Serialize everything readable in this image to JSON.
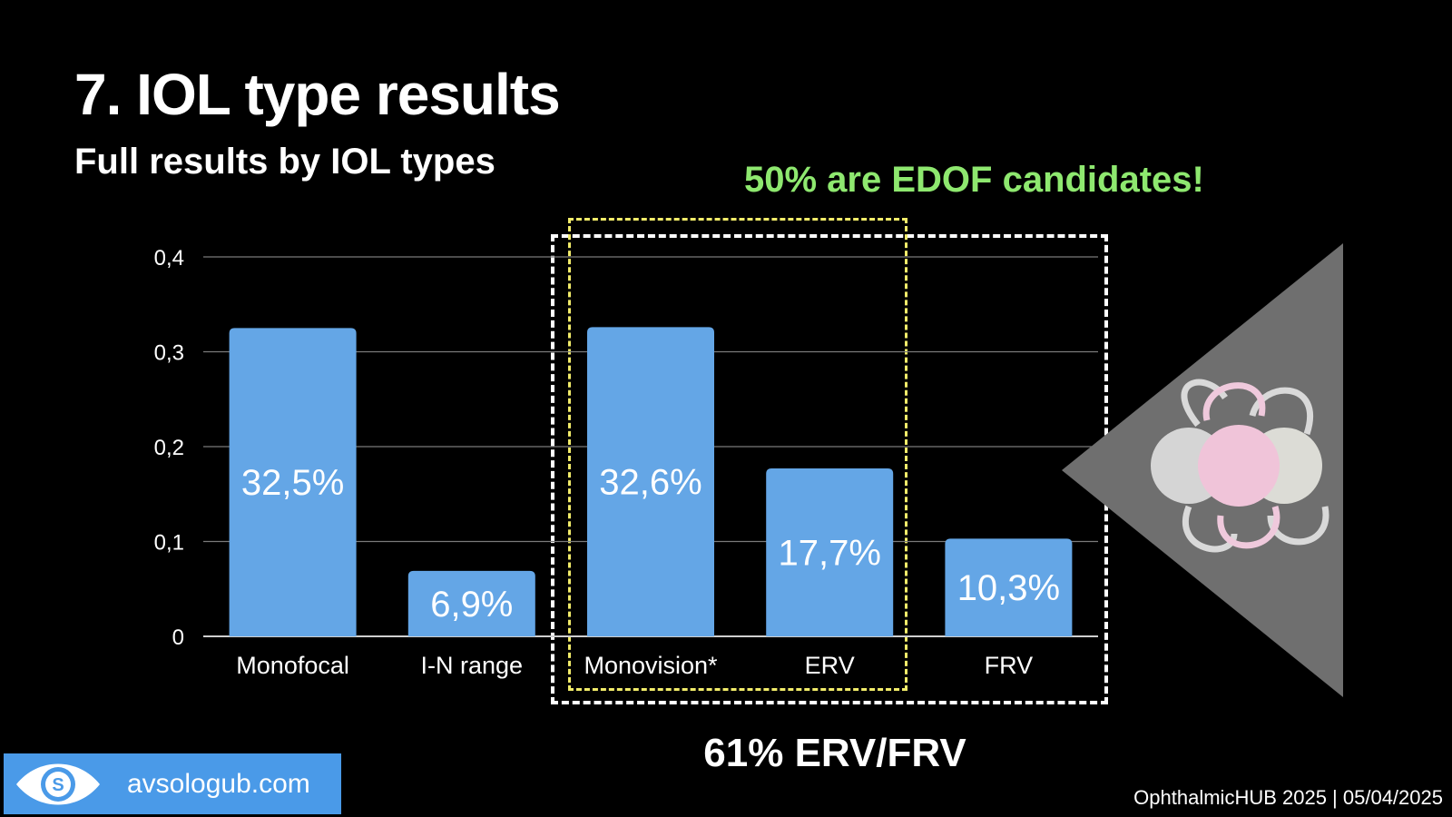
{
  "slide": {
    "title": "7. IOL type results",
    "subtitle": "Full results by IOL types",
    "callout_top": "50% are EDOF candidates!",
    "callout_bottom": "61% ERV/FRV",
    "brand": "avsologub.com",
    "footer": "OphthalmicHUB 2025 | 05/04/2025"
  },
  "colors": {
    "bar": "#64a6e6",
    "accent_green": "#8ee86f",
    "box_yellow": "#f2ec6a",
    "brand_bg": "#4a9ae8"
  },
  "chart_data": {
    "type": "bar",
    "title": "",
    "xlabel": "",
    "ylabel": "",
    "categories": [
      "Monofocal",
      "I-N range",
      "Monovision*",
      "ERV",
      "FRV"
    ],
    "values": [
      0.325,
      0.069,
      0.326,
      0.177,
      0.103
    ],
    "data_labels": [
      "32,5%",
      "6,9%",
      "32,6%",
      "17,7%",
      "10,3%"
    ],
    "yticks": [
      "0",
      "0,1",
      "0,2",
      "0,3",
      "0,4"
    ],
    "ylim": [
      0,
      0.4
    ],
    "grid": true
  }
}
